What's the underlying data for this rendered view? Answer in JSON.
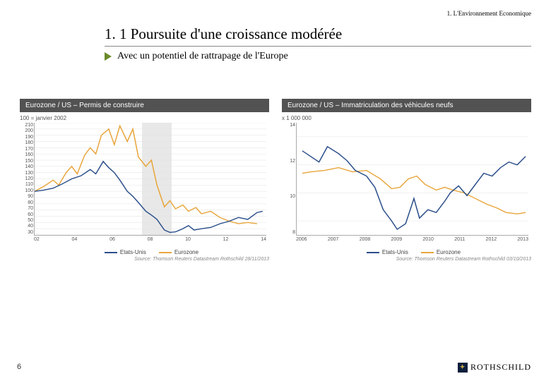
{
  "breadcrumb": "1. L'Environnement Economique",
  "title": "1. 1 Poursuite d'une croissance modérée",
  "subtitle": "Avec un potentiel de rattrapage de l'Europe",
  "page_number": "6",
  "logo_text": "ROTHSCHILD",
  "colors": {
    "series_us": "#2a4e8a",
    "series_eu": "#e8a63c",
    "grid": "#e2e2e2",
    "shaded": "#d8d8d8",
    "header_bg": "#525252",
    "arrow": "#6a8a2a"
  },
  "legend": {
    "us": "Etats-Unis",
    "eu": "Eurozone"
  },
  "chart_left": {
    "header": "Eurozone / US –  Permis de construire",
    "y_note": "100 = janvier 2002",
    "source": "Source: Thomson Reuters Datastream Rothschild 28/11/2013",
    "x_ticks": [
      "02",
      "04",
      "06",
      "08",
      "10",
      "12",
      "14"
    ],
    "y_ticks": [
      "210",
      "200",
      "190",
      "180",
      "170",
      "160",
      "150",
      "140",
      "130",
      "120",
      "110",
      "100",
      "90",
      "80",
      "70",
      "60",
      "50",
      "40",
      "30"
    ],
    "ylim": [
      30,
      210
    ],
    "xlim": [
      2002,
      2014.5
    ],
    "shaded_region": [
      2007.8,
      2009.4
    ],
    "series_us": [
      [
        2002,
        100
      ],
      [
        2002.5,
        102
      ],
      [
        2003,
        105
      ],
      [
        2003.5,
        112
      ],
      [
        2004,
        120
      ],
      [
        2004.5,
        125
      ],
      [
        2005,
        135
      ],
      [
        2005.3,
        128
      ],
      [
        2005.7,
        148
      ],
      [
        2006,
        138
      ],
      [
        2006.3,
        130
      ],
      [
        2006.6,
        118
      ],
      [
        2007,
        100
      ],
      [
        2007.3,
        92
      ],
      [
        2007.6,
        82
      ],
      [
        2008,
        68
      ],
      [
        2008.3,
        62
      ],
      [
        2008.6,
        55
      ],
      [
        2009,
        38
      ],
      [
        2009.3,
        34
      ],
      [
        2009.6,
        35
      ],
      [
        2010,
        40
      ],
      [
        2010.3,
        45
      ],
      [
        2010.6,
        38
      ],
      [
        2011,
        40
      ],
      [
        2011.5,
        42
      ],
      [
        2012,
        48
      ],
      [
        2012.5,
        52
      ],
      [
        2013,
        58
      ],
      [
        2013.5,
        55
      ],
      [
        2014,
        66
      ],
      [
        2014.3,
        68
      ]
    ],
    "series_eu": [
      [
        2002,
        100
      ],
      [
        2002.5,
        108
      ],
      [
        2003,
        118
      ],
      [
        2003.3,
        110
      ],
      [
        2003.7,
        130
      ],
      [
        2004,
        140
      ],
      [
        2004.3,
        128
      ],
      [
        2004.7,
        158
      ],
      [
        2005,
        170
      ],
      [
        2005.3,
        160
      ],
      [
        2005.6,
        190
      ],
      [
        2006,
        200
      ],
      [
        2006.3,
        175
      ],
      [
        2006.6,
        205
      ],
      [
        2007,
        180
      ],
      [
        2007.3,
        200
      ],
      [
        2007.6,
        155
      ],
      [
        2008,
        140
      ],
      [
        2008.3,
        150
      ],
      [
        2008.6,
        110
      ],
      [
        2009,
        75
      ],
      [
        2009.3,
        85
      ],
      [
        2009.6,
        72
      ],
      [
        2010,
        78
      ],
      [
        2010.3,
        68
      ],
      [
        2010.7,
        74
      ],
      [
        2011,
        64
      ],
      [
        2011.5,
        68
      ],
      [
        2012,
        58
      ],
      [
        2012.5,
        52
      ],
      [
        2013,
        48
      ],
      [
        2013.5,
        50
      ],
      [
        2014,
        48
      ]
    ]
  },
  "chart_right": {
    "header": "Eurozone / US – Immatriculation des véhicules neufs",
    "y_note": "x 1 000 000",
    "source": "Source: Thomson Reuters Datastream Rothschild 03/10/2013",
    "x_ticks": [
      "2006",
      "2007",
      "2008",
      "2009",
      "2010",
      "2011",
      "2012",
      "2013"
    ],
    "y_ticks": [
      "14",
      "12",
      "10",
      "8"
    ],
    "ylim": [
      7,
      15
    ],
    "xlim": [
      2005.5,
      2013.8
    ],
    "series_us": [
      [
        2005.7,
        13.0
      ],
      [
        2006,
        12.6
      ],
      [
        2006.3,
        12.2
      ],
      [
        2006.6,
        13.3
      ],
      [
        2007,
        12.8
      ],
      [
        2007.3,
        12.3
      ],
      [
        2007.6,
        11.6
      ],
      [
        2008,
        11.2
      ],
      [
        2008.3,
        10.4
      ],
      [
        2008.6,
        8.8
      ],
      [
        2008.9,
        8.0
      ],
      [
        2009.1,
        7.4
      ],
      [
        2009.4,
        7.8
      ],
      [
        2009.7,
        9.6
      ],
      [
        2009.9,
        8.2
      ],
      [
        2010.2,
        8.8
      ],
      [
        2010.5,
        8.6
      ],
      [
        2010.8,
        9.4
      ],
      [
        2011,
        10.0
      ],
      [
        2011.3,
        10.5
      ],
      [
        2011.6,
        9.8
      ],
      [
        2011.9,
        10.6
      ],
      [
        2012.2,
        11.4
      ],
      [
        2012.5,
        11.2
      ],
      [
        2012.8,
        11.8
      ],
      [
        2013.1,
        12.2
      ],
      [
        2013.4,
        12.0
      ],
      [
        2013.7,
        12.6
      ]
    ],
    "series_eu": [
      [
        2005.7,
        11.4
      ],
      [
        2006,
        11.5
      ],
      [
        2006.5,
        11.6
      ],
      [
        2007,
        11.8
      ],
      [
        2007.5,
        11.5
      ],
      [
        2008,
        11.6
      ],
      [
        2008.5,
        11.0
      ],
      [
        2008.9,
        10.3
      ],
      [
        2009.2,
        10.4
      ],
      [
        2009.5,
        11.0
      ],
      [
        2009.8,
        11.2
      ],
      [
        2010.1,
        10.6
      ],
      [
        2010.5,
        10.2
      ],
      [
        2010.8,
        10.4
      ],
      [
        2011.1,
        10.2
      ],
      [
        2011.5,
        10.0
      ],
      [
        2011.9,
        9.6
      ],
      [
        2012.3,
        9.2
      ],
      [
        2012.7,
        8.9
      ],
      [
        2013.0,
        8.6
      ],
      [
        2013.4,
        8.5
      ],
      [
        2013.7,
        8.6
      ]
    ]
  }
}
